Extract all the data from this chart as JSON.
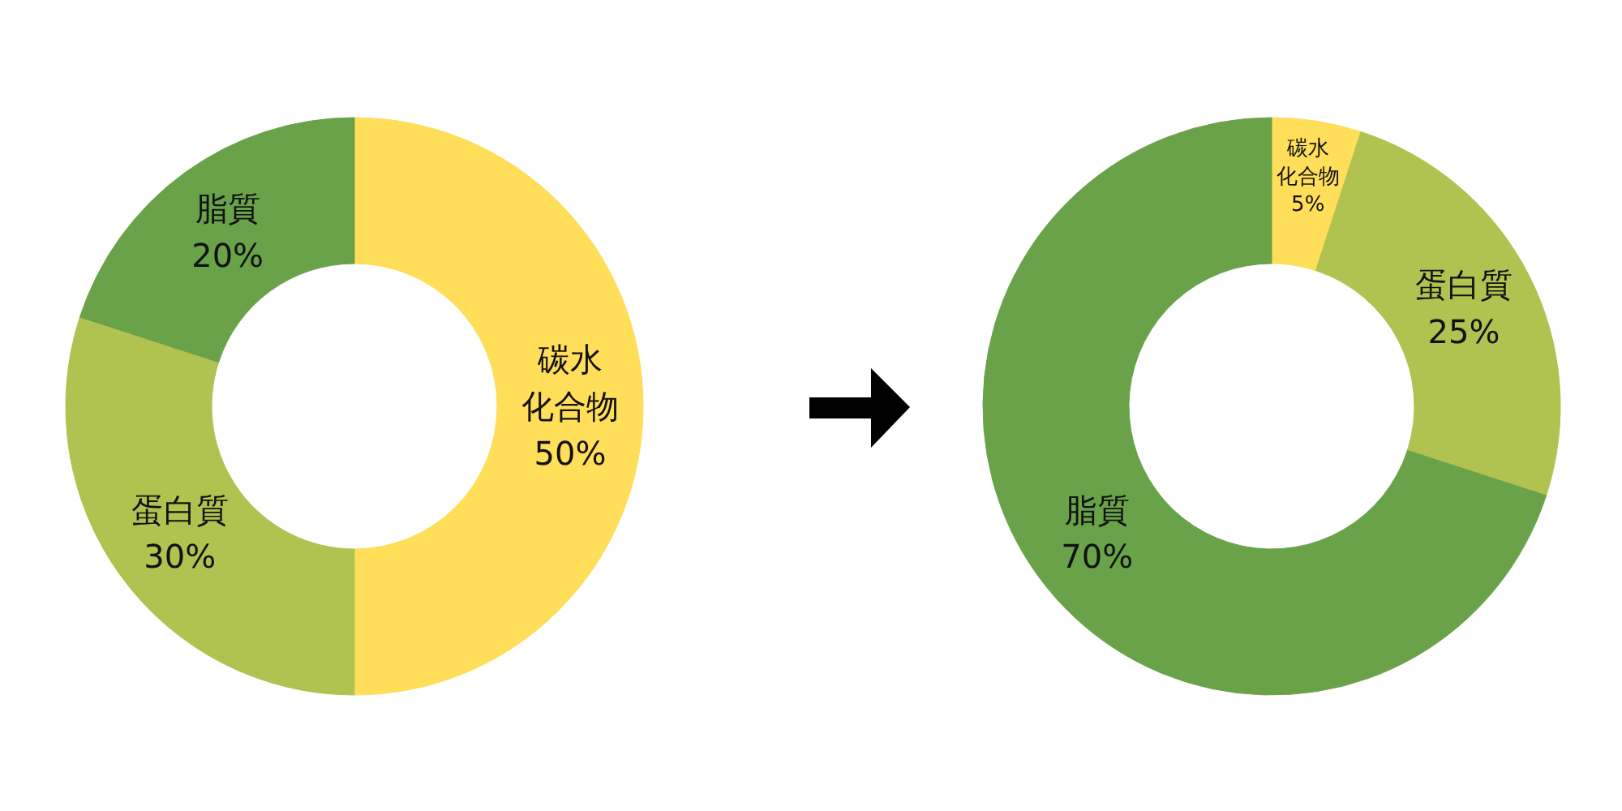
{
  "chart_data": [
    {
      "type": "donut",
      "categories": [
        "碳水化合物",
        "蛋白質",
        "脂質"
      ],
      "values": [
        50,
        30,
        20
      ],
      "colors": [
        "#ffde59",
        "#b0c24f",
        "#6aa24a"
      ],
      "value_labels": [
        "50%",
        "30%",
        "20%"
      ]
    },
    {
      "type": "donut",
      "categories": [
        "碳水化合物",
        "蛋白質",
        "脂質"
      ],
      "values": [
        5,
        25,
        70
      ],
      "colors": [
        "#ffde59",
        "#b0c24f",
        "#6aa24a"
      ],
      "value_labels": [
        "5%",
        "25%",
        "70%"
      ]
    }
  ]
}
